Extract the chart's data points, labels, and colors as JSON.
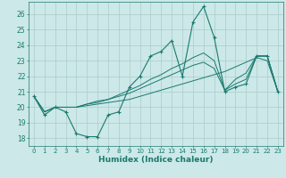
{
  "title": "",
  "xlabel": "Humidex (Indice chaleur)",
  "bg_color": "#cce8e8",
  "grid_color": "#aacccc",
  "line_color": "#1a7a6e",
  "xlim": [
    -0.5,
    23.5
  ],
  "ylim": [
    17.5,
    26.8
  ],
  "yticks": [
    18,
    19,
    20,
    21,
    22,
    23,
    24,
    25,
    26
  ],
  "xticks": [
    0,
    1,
    2,
    3,
    4,
    5,
    6,
    7,
    8,
    9,
    10,
    11,
    12,
    13,
    14,
    15,
    16,
    17,
    18,
    19,
    20,
    21,
    22,
    23
  ],
  "series": [
    [
      20.7,
      19.5,
      20.0,
      19.7,
      18.3,
      18.1,
      18.1,
      19.5,
      19.7,
      21.3,
      22.0,
      23.3,
      23.6,
      24.3,
      22.0,
      25.5,
      26.5,
      24.5,
      21.0,
      21.3,
      21.5,
      23.3,
      23.3,
      21.0
    ],
    [
      20.7,
      19.7,
      20.0,
      20.0,
      20.0,
      20.1,
      20.2,
      20.3,
      20.4,
      20.5,
      20.7,
      20.9,
      21.1,
      21.3,
      21.5,
      21.7,
      21.9,
      22.1,
      22.3,
      22.6,
      22.9,
      23.2,
      23.0,
      21.0
    ],
    [
      20.7,
      19.7,
      20.0,
      20.0,
      20.0,
      20.2,
      20.3,
      20.5,
      20.7,
      20.9,
      21.2,
      21.5,
      21.8,
      22.1,
      22.4,
      22.7,
      22.9,
      22.5,
      21.1,
      21.5,
      21.8,
      23.3,
      23.3,
      21.0
    ],
    [
      20.7,
      19.7,
      20.0,
      20.0,
      20.0,
      20.2,
      20.4,
      20.5,
      20.8,
      21.1,
      21.4,
      21.8,
      22.1,
      22.5,
      22.8,
      23.2,
      23.5,
      23.0,
      21.1,
      21.8,
      22.2,
      23.3,
      23.3,
      21.0
    ]
  ],
  "marker_series": 0
}
